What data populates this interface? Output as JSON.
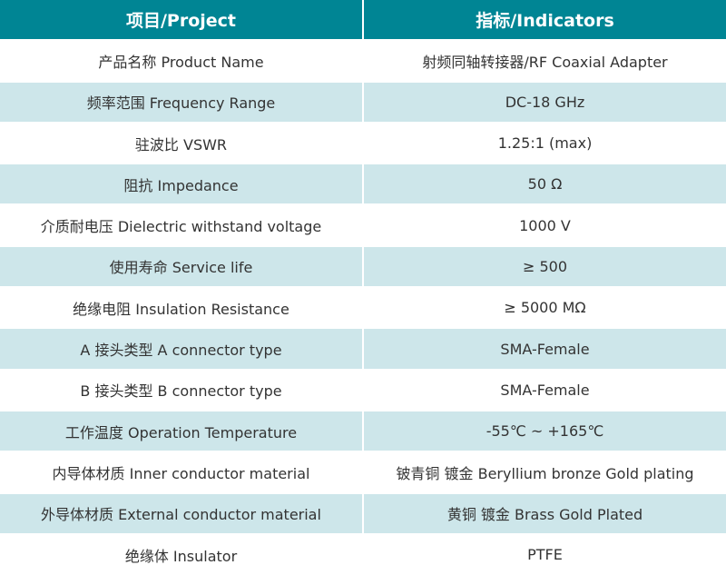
{
  "header": {
    "project": "项目/Project",
    "indicators": "指标/Indicators"
  },
  "colors": {
    "header_bg": "#008594",
    "alt_row_bg": "#cde6ea"
  },
  "rows": [
    {
      "project": "产品名称 Product Name",
      "indicator": "射频同轴转接器/RF Coaxial Adapter"
    },
    {
      "project": "频率范围 Frequency Range",
      "indicator": "DC-18 GHz"
    },
    {
      "project": "驻波比 VSWR",
      "indicator": "1.25:1 (max)"
    },
    {
      "project": "阻抗 Impedance",
      "indicator": "50 Ω"
    },
    {
      "project": "介质耐电压 Dielectric withstand voltage",
      "indicator": "1000 V"
    },
    {
      "project": "使用寿命 Service life",
      "indicator": "≥ 500"
    },
    {
      "project": "绝缘电阻 Insulation Resistance",
      "indicator": "≥ 5000 MΩ"
    },
    {
      "project": "A 接头类型  A connector type",
      "indicator": "SMA-Female"
    },
    {
      "project": "B 接头类型  B connector type",
      "indicator": "SMA-Female"
    },
    {
      "project": "工作温度 Operation Temperature",
      "indicator": "-55℃ ~ +165℃"
    },
    {
      "project": "内导体材质 Inner conductor material",
      "indicator": "铍青铜 镀金 Beryllium bronze Gold plating"
    },
    {
      "project": "外导体材质 External conductor material",
      "indicator": "黄铜 镀金 Brass Gold Plated"
    },
    {
      "project": "绝缘体 Insulator",
      "indicator": "PTFE"
    }
  ]
}
